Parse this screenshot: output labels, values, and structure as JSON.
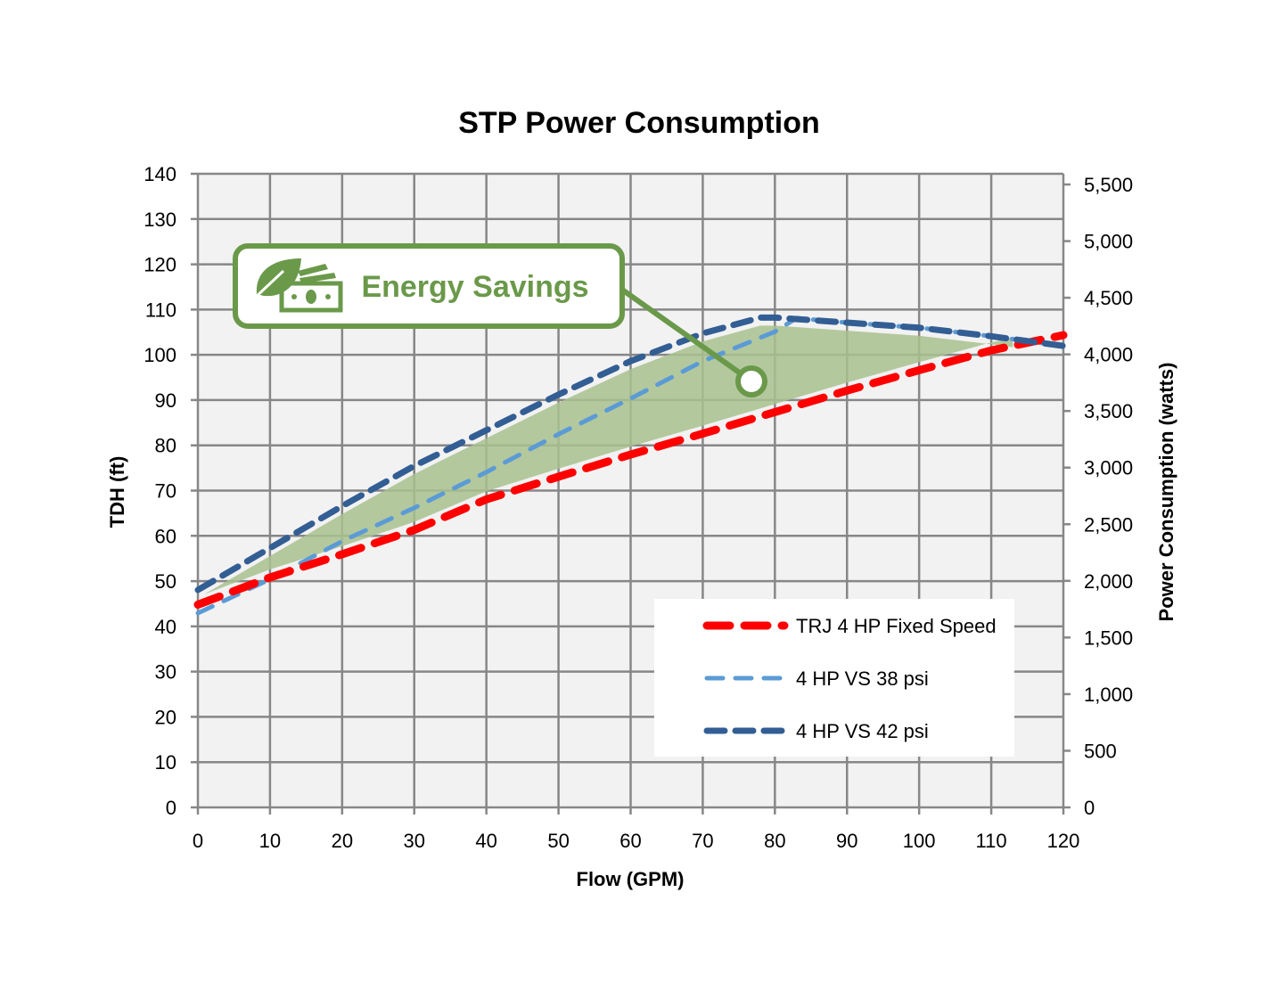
{
  "chart_data": {
    "type": "line",
    "title": "STP Power Consumption",
    "xlabel": "Flow (GPM)",
    "ylabel": "TDH (ft)",
    "y2label": "Power Consumption (watts)",
    "xlim": [
      0,
      120
    ],
    "ylim": [
      0,
      140
    ],
    "y2lim": [
      0,
      5500
    ],
    "xticks": [
      0,
      10,
      20,
      30,
      40,
      50,
      60,
      70,
      80,
      90,
      100,
      110,
      120
    ],
    "yticks": [
      0,
      10,
      20,
      30,
      40,
      50,
      60,
      70,
      80,
      90,
      100,
      110,
      120,
      130,
      140
    ],
    "y2ticks": [
      0,
      500,
      1000,
      1500,
      2000,
      2500,
      3000,
      3500,
      4000,
      4500,
      5000,
      5500
    ],
    "y2tick_labels": [
      "0",
      "500",
      "1,000",
      "1,500",
      "2,000",
      "2,500",
      "3,000",
      "3,500",
      "4,000",
      "4,500",
      "5,000",
      "5,500"
    ],
    "grid": true,
    "legend_placement": "bottom-right",
    "series": [
      {
        "name": "TRJ 4 HP Fixed Speed",
        "axis": "y2",
        "color": "#ff0000",
        "x": [
          0,
          10,
          20,
          30,
          40,
          50,
          60,
          70,
          80,
          90,
          100,
          110,
          120
        ],
        "values": [
          1790,
          2030,
          2235,
          2450,
          2720,
          2920,
          3115,
          3300,
          3490,
          3680,
          3860,
          4035,
          4170
        ]
      },
      {
        "name": "4 HP VS 38 psi",
        "axis": "y2",
        "color": "#5b9bd5",
        "x": [
          0,
          10,
          20,
          30,
          40,
          50,
          60,
          70,
          80,
          83,
          90,
          100,
          110,
          117,
          120
        ],
        "values": [
          1715,
          2015,
          2350,
          2645,
          2960,
          3295,
          3610,
          3940,
          4200,
          4320,
          4280,
          4235,
          4160,
          4100,
          4075
        ]
      },
      {
        "name": "4 HP VS 42 psi",
        "axis": "y2",
        "color": "#335e94",
        "x": [
          0,
          10,
          20,
          30,
          40,
          50,
          60,
          70,
          78,
          80,
          90,
          100,
          110,
          117,
          120
        ],
        "values": [
          1920,
          2290,
          2660,
          3015,
          3330,
          3645,
          3940,
          4185,
          4325,
          4325,
          4280,
          4235,
          4160,
          4100,
          4075
        ]
      }
    ],
    "annotation": {
      "text": "Energy Savings",
      "icon": "leaf-money-icon",
      "color": "#6a994a",
      "shaded_region": "between 4 HP VS 42 psi and TRJ 4 HP Fixed Speed"
    }
  }
}
